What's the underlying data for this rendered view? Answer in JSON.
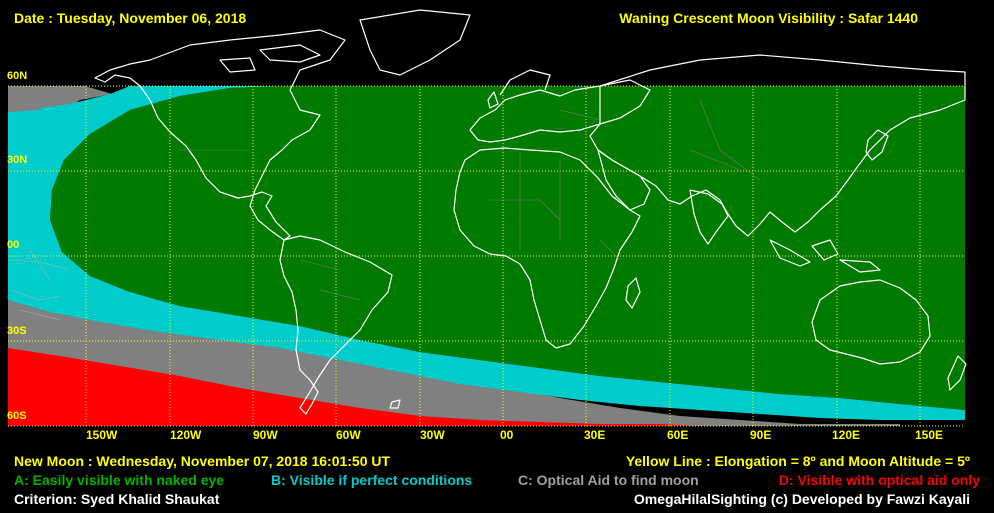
{
  "header": {
    "date": "Date : Tuesday, November 06, 2018",
    "title": "Waning Crescent Moon Visibility : Safar 1440"
  },
  "latitudes": [
    {
      "label": "60N",
      "value": 60
    },
    {
      "label": "30N",
      "value": 30
    },
    {
      "label": "00",
      "value": 0
    },
    {
      "label": "30S",
      "value": -30
    },
    {
      "label": "60S",
      "value": -60
    }
  ],
  "longitudes": [
    {
      "label": "150W",
      "value": -150
    },
    {
      "label": "120W",
      "value": -120
    },
    {
      "label": "90W",
      "value": -90
    },
    {
      "label": "60W",
      "value": -60
    },
    {
      "label": "30W",
      "value": -30
    },
    {
      "label": "00",
      "value": 0
    },
    {
      "label": "30E",
      "value": 30
    },
    {
      "label": "60E",
      "value": 60
    },
    {
      "label": "90E",
      "value": 90
    },
    {
      "label": "120E",
      "value": 120
    },
    {
      "label": "150E",
      "value": 150
    }
  ],
  "footer": {
    "new_moon": "New Moon : Wednesday, November 07, 2018  16:01:50  UT",
    "yellow_line": "Yellow Line : Elongation = 8º and Moon Altitude = 5º",
    "legend_a": "A: Easily visible with naked eye",
    "legend_b": "B: Visible if perfect conditions",
    "legend_c": "C: Optical Aid to find moon",
    "legend_d": "D: Visible with optical aid only",
    "criterion": "Criterion: Syed Khalid Shaukat",
    "credit": "OmegaHilalSighting  (c)  Developed by Fawzi Kayali"
  },
  "colors": {
    "zone_a": "#007b00",
    "zone_b": "#00cccc",
    "zone_c": "#808080",
    "zone_d": "#ff0000",
    "grid": "#ffff00",
    "coast": "#ffffff",
    "text_yellow": "#ffff00"
  }
}
